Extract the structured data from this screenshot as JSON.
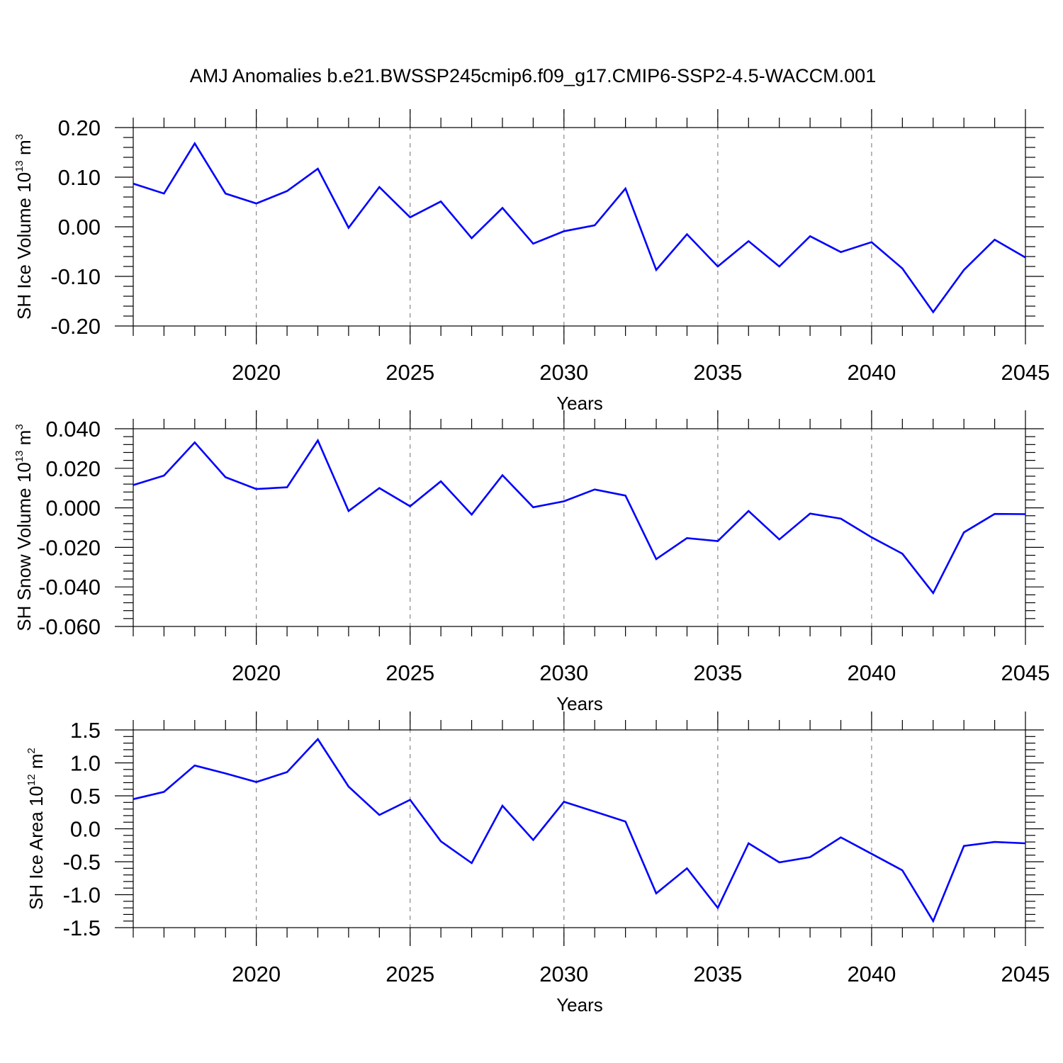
{
  "title": "AMJ Anomalies b.e21.BWSSP245cmip6.f09_g17.CMIP6-SSP2-4.5-WACCM.001",
  "colors": {
    "line": "#0000ff",
    "grid": "#888888",
    "axis": "#000000"
  },
  "chart_data": [
    {
      "type": "line",
      "ylabel": {
        "main": "SH Ice Volume 10",
        "sup": "13",
        "unit": " m",
        "unit_sup": "3"
      },
      "xlabel": "Years",
      "xlim": [
        2016,
        2045
      ],
      "ylim": [
        -0.2,
        0.2
      ],
      "x_ticks": [
        2020,
        2025,
        2030,
        2035,
        2040,
        2045
      ],
      "y_ticks": [
        -0.2,
        -0.1,
        0.0,
        0.1,
        0.2
      ],
      "y_tick_labels": [
        "-0.20",
        "-0.10",
        "0.00",
        "0.10",
        "0.20"
      ],
      "grid": "dashed vertical at x ticks",
      "x": [
        2016,
        2017,
        2018,
        2019,
        2020,
        2021,
        2022,
        2023,
        2024,
        2025,
        2026,
        2027,
        2028,
        2029,
        2030,
        2031,
        2032,
        2033,
        2034,
        2035,
        2036,
        2037,
        2038,
        2039,
        2040,
        2041,
        2042,
        2043,
        2044,
        2045
      ],
      "values": [
        0.087,
        0.067,
        0.168,
        0.067,
        0.047,
        0.072,
        0.117,
        -0.002,
        0.08,
        0.019,
        0.051,
        -0.023,
        0.038,
        -0.034,
        -0.009,
        0.003,
        0.077,
        -0.087,
        -0.015,
        -0.08,
        -0.029,
        -0.08,
        -0.019,
        -0.051,
        -0.031,
        -0.084,
        -0.172,
        -0.087,
        -0.026,
        -0.062
      ]
    },
    {
      "type": "line",
      "ylabel": {
        "main": "SH Snow Volume 10",
        "sup": "13",
        "unit": " m",
        "unit_sup": "3"
      },
      "xlabel": "Years",
      "xlim": [
        2016,
        2045
      ],
      "ylim": [
        -0.06,
        0.04
      ],
      "x_ticks": [
        2020,
        2025,
        2030,
        2035,
        2040,
        2045
      ],
      "y_ticks": [
        -0.06,
        -0.04,
        -0.02,
        0.0,
        0.02,
        0.04
      ],
      "y_tick_labels": [
        "-0.060",
        "-0.040",
        "-0.020",
        "0.000",
        "0.020",
        "0.040"
      ],
      "grid": "dashed vertical at x ticks",
      "x": [
        2016,
        2017,
        2018,
        2019,
        2020,
        2021,
        2022,
        2023,
        2024,
        2025,
        2026,
        2027,
        2028,
        2029,
        2030,
        2031,
        2032,
        2033,
        2034,
        2035,
        2036,
        2037,
        2038,
        2039,
        2040,
        2041,
        2042,
        2043,
        2044,
        2045
      ],
      "values": [
        0.0115,
        0.0163,
        0.0331,
        0.0155,
        0.0095,
        0.0104,
        0.0341,
        -0.0016,
        0.01,
        0.0008,
        0.0134,
        -0.0034,
        0.0165,
        0.0003,
        0.0033,
        0.0093,
        0.0062,
        -0.0259,
        -0.0153,
        -0.0168,
        -0.0016,
        -0.016,
        -0.0029,
        -0.0055,
        -0.0149,
        -0.0232,
        -0.0431,
        -0.0124,
        -0.0031,
        -0.0032
      ]
    },
    {
      "type": "line",
      "ylabel": {
        "main": "SH Ice Area 10",
        "sup": "12",
        "unit": " m",
        "unit_sup": "2"
      },
      "xlabel": "Years",
      "xlim": [
        2016,
        2045
      ],
      "ylim": [
        -1.5,
        1.5
      ],
      "x_ticks": [
        2020,
        2025,
        2030,
        2035,
        2040,
        2045
      ],
      "y_ticks": [
        -1.5,
        -1.0,
        -0.5,
        0.0,
        0.5,
        1.0,
        1.5
      ],
      "y_tick_labels": [
        "-1.5",
        "-1.0",
        "-0.5",
        "0.0",
        "0.5",
        "1.0",
        "1.5"
      ],
      "grid": "dashed vertical at x ticks",
      "x": [
        2016,
        2017,
        2018,
        2019,
        2020,
        2021,
        2022,
        2023,
        2024,
        2025,
        2026,
        2027,
        2028,
        2029,
        2030,
        2031,
        2032,
        2033,
        2034,
        2035,
        2036,
        2037,
        2038,
        2039,
        2040,
        2041,
        2042,
        2043,
        2044,
        2045
      ],
      "values": [
        0.45,
        0.56,
        0.96,
        0.84,
        0.71,
        0.86,
        1.36,
        0.64,
        0.21,
        0.44,
        -0.19,
        -0.52,
        0.35,
        -0.17,
        0.41,
        0.26,
        0.11,
        -0.98,
        -0.6,
        -1.2,
        -0.22,
        -0.51,
        -0.43,
        -0.13,
        -0.38,
        -0.63,
        -1.4,
        -0.26,
        -0.2,
        -0.22
      ]
    }
  ]
}
